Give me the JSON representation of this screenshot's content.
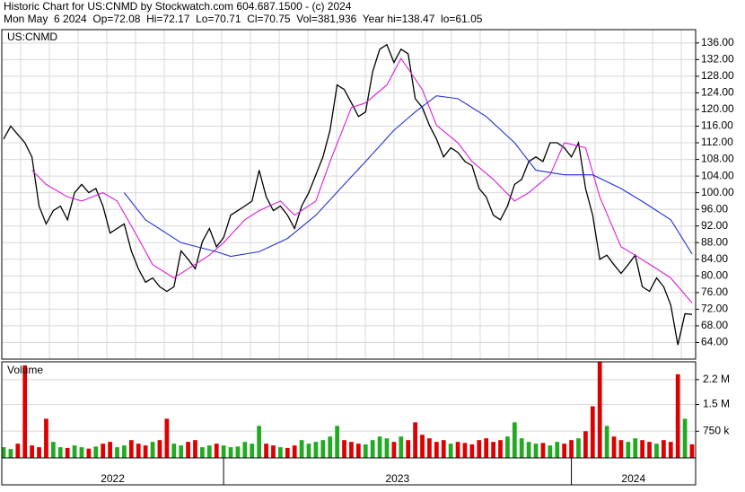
{
  "chart_data": [
    {
      "type": "line",
      "title": "Historic Chart for US:CNMD by Stockwatch.com 604.687.1500 - (c) 2024",
      "subtitle": "Mon May  6 2024  Op=72.08  Hi=72.17  Lo=70.71  Cl=70.75  Vol=381,936  Year hi=138.47  lo=61.05",
      "label": "US:CNMD",
      "categories": [
        "2022",
        null,
        null,
        null,
        null,
        null,
        null,
        null,
        null,
        null,
        null,
        null,
        null,
        null,
        null,
        null,
        null,
        null,
        null,
        null,
        null,
        null,
        null,
        null,
        null,
        null,
        null,
        null,
        null,
        null,
        null,
        "2023",
        null,
        null,
        null,
        null,
        null,
        null,
        null,
        null,
        null,
        null,
        null,
        null,
        null,
        null,
        null,
        null,
        null,
        null,
        null,
        null,
        null,
        null,
        null,
        null,
        null,
        null,
        null,
        null,
        null,
        null,
        null,
        null,
        null,
        null,
        null,
        null,
        null,
        null,
        null,
        null,
        null,
        null,
        null,
        null,
        null,
        null,
        null,
        null,
        "2024",
        null,
        null,
        null,
        null,
        null,
        null,
        null,
        null,
        null,
        null,
        null,
        null,
        null,
        null,
        null,
        null,
        null
      ],
      "ylim": [
        60,
        139.2
      ],
      "yticks": [
        {
          "value": 64,
          "label": "64.00"
        },
        {
          "value": 68,
          "label": "68.00"
        },
        {
          "value": 72,
          "label": "72.00"
        },
        {
          "value": 76,
          "label": "76.00"
        },
        {
          "value": 80,
          "label": "80.00"
        },
        {
          "value": 84,
          "label": "84.00"
        },
        {
          "value": 88,
          "label": "88.00"
        },
        {
          "value": 92,
          "label": "92.00"
        },
        {
          "value": 96,
          "label": "96.00"
        },
        {
          "value": 100,
          "label": "100.00"
        },
        {
          "value": 104,
          "label": "104.00"
        },
        {
          "value": 108,
          "label": "108.00"
        },
        {
          "value": 112,
          "label": "112.00"
        },
        {
          "value": 116,
          "label": "116.00"
        },
        {
          "value": 120,
          "label": "120.00"
        },
        {
          "value": 124,
          "label": "124.00"
        },
        {
          "value": 128,
          "label": "128.00"
        },
        {
          "value": 132,
          "label": "132.00"
        },
        {
          "value": 136,
          "label": "136.00"
        }
      ],
      "grid": true,
      "series": [
        {
          "color": "#000000",
          "values": [
            112.9,
            116,
            114,
            112,
            108.6,
            96.8,
            92.5,
            95.7,
            96.8,
            93.5,
            100,
            102,
            100,
            101,
            96.8,
            90.3,
            91.4,
            92.5,
            86,
            81.7,
            78.5,
            79.5,
            77.4,
            76.3,
            77.4,
            86,
            84,
            81.7,
            88.2,
            91.4,
            87,
            89.2,
            94.6,
            95.7,
            96.8,
            98,
            105.4,
            99,
            95.7,
            96.8,
            94.6,
            91.4,
            96.8,
            100,
            104.3,
            108.6,
            115,
            125.9,
            124.8,
            121.6,
            118.3,
            119.4,
            129.1,
            134.5,
            135.6,
            131.3,
            134.5,
            133.4,
            122.6,
            120.5,
            116.2,
            112.9,
            108.6,
            110.8,
            109.7,
            107.5,
            106.5,
            101,
            99,
            94.6,
            93.5,
            96.8,
            102,
            103.2,
            107.5,
            108.6,
            107.5,
            112,
            112,
            110.8,
            108.6,
            112,
            101,
            94.6,
            84,
            85,
            82.7,
            80.6,
            82.7,
            85,
            77.4,
            76.3,
            79.5,
            77.4,
            73,
            63.4,
            70.9,
            70.75
          ]
        },
        {
          "color": "#d81ed8",
          "x": [
            4,
            6,
            9,
            11,
            14,
            16,
            19,
            21,
            24,
            26,
            29,
            31,
            34,
            36,
            39,
            41,
            44,
            46,
            49,
            51,
            54,
            56,
            59,
            61,
            64,
            66,
            69,
            72,
            74,
            77,
            79,
            82,
            84,
            87,
            89,
            92,
            94,
            97
          ],
          "values": [
            105.4,
            102,
            99,
            98,
            100,
            98,
            89,
            82.7,
            79.5,
            81.7,
            85,
            88,
            93.5,
            95.7,
            98,
            94.6,
            98,
            107.5,
            120.5,
            121.6,
            125.9,
            132.3,
            124.8,
            116.2,
            112,
            107.5,
            103.2,
            98,
            100,
            104.3,
            112,
            110.8,
            99,
            87,
            85,
            81.7,
            79.5,
            73.5
          ]
        },
        {
          "color": "#2233d0",
          "x": [
            17,
            20,
            25,
            30,
            32,
            36,
            40,
            44,
            48,
            51,
            55,
            58,
            61,
            64,
            68,
            72,
            75,
            79,
            83,
            87,
            90,
            94,
            97
          ],
          "values": [
            100,
            93.5,
            88,
            85.8,
            84.7,
            85.8,
            89,
            94.6,
            102,
            107.5,
            115,
            119.4,
            123.3,
            122.6,
            118.3,
            112,
            105.4,
            104.3,
            104.3,
            101,
            97.9,
            93.5,
            85.3
          ]
        }
      ]
    },
    {
      "type": "bar",
      "label": "Volume",
      "up_color": "#22aa22",
      "down_color": "#dd0000",
      "ylim": [
        0,
        2700000
      ],
      "yticks": [
        {
          "value": 750000,
          "label": "750 k"
        },
        {
          "value": 1500000,
          "label": "1.5 M"
        },
        {
          "value": 2200000,
          "label": "2.2 M"
        }
      ],
      "values": [
        300000,
        250000,
        400000,
        2600000,
        350000,
        300000,
        1100000,
        450000,
        300000,
        280000,
        350000,
        300000,
        260000,
        320000,
        400000,
        450000,
        300000,
        350000,
        500000,
        400000,
        350000,
        450000,
        500000,
        1100000,
        400000,
        350000,
        450000,
        500000,
        300000,
        350000,
        400000,
        350000,
        300000,
        320000,
        450000,
        400000,
        900000,
        400000,
        350000,
        300000,
        280000,
        350000,
        500000,
        400000,
        450000,
        500000,
        600000,
        900000,
        500000,
        450000,
        400000,
        380000,
        500000,
        600000,
        550000,
        450000,
        600000,
        500000,
        1000000,
        650000,
        550000,
        450000,
        500000,
        400000,
        450000,
        420000,
        380000,
        500000,
        550000,
        450000,
        500000,
        600000,
        1000000,
        550000,
        450000,
        400000,
        420000,
        350000,
        450000,
        400000,
        500000,
        550000,
        750000,
        1450000,
        2700000,
        900000,
        600000,
        500000,
        450000,
        550000,
        500000,
        450000,
        400000,
        500000,
        450000,
        2350000,
        1100000,
        381936
      ]
    }
  ]
}
